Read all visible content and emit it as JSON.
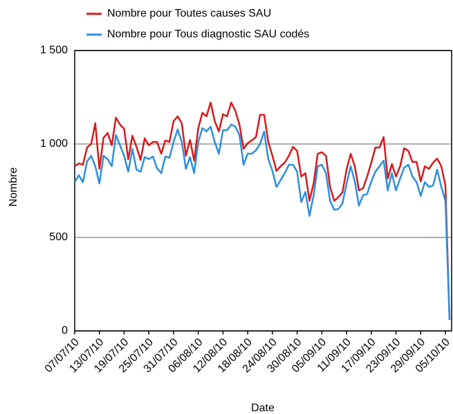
{
  "chart_data": {
    "type": "line",
    "xlabel": "Date",
    "ylabel": "Nombre",
    "categories": [
      "07/07/10",
      null,
      null,
      null,
      null,
      null,
      "13/07/10",
      null,
      null,
      null,
      null,
      null,
      "19/07/10",
      null,
      null,
      null,
      null,
      null,
      "25/07/10",
      null,
      null,
      null,
      null,
      null,
      "31/07/10",
      null,
      null,
      null,
      null,
      null,
      "06/08/10",
      null,
      null,
      null,
      null,
      null,
      "12/08/10",
      null,
      null,
      null,
      null,
      null,
      "18/08/10",
      null,
      null,
      null,
      null,
      null,
      "24/08/10",
      null,
      null,
      null,
      null,
      null,
      "30/08/10",
      null,
      null,
      null,
      null,
      null,
      "05/09/10",
      null,
      null,
      null,
      null,
      null,
      "11/09/10",
      null,
      null,
      null,
      null,
      null,
      "17/09/10",
      null,
      null,
      null,
      null,
      null,
      "23/09/10",
      null,
      null,
      null,
      null,
      null,
      "29/09/10",
      null,
      null,
      null,
      null,
      null,
      "05/10/10",
      null
    ],
    "series": [
      {
        "name": "Nombre pour Toutes causes SAU",
        "color": "#d7191c",
        "values": [
          881,
          896,
          889,
          981,
          1000,
          1111,
          867,
          1033,
          1059,
          993,
          1141,
          1104,
          1081,
          919,
          1044,
          985,
          915,
          1030,
          993,
          1011,
          1011,
          948,
          1019,
          1011,
          1122,
          1148,
          1111,
          937,
          1022,
          911,
          1085,
          1167,
          1148,
          1222,
          1122,
          1067,
          1159,
          1148,
          1222,
          1178,
          1104,
          974,
          1004,
          1019,
          1037,
          1156,
          1156,
          1011,
          937,
          856,
          881,
          900,
          937,
          985,
          963,
          826,
          844,
          696,
          789,
          948,
          956,
          937,
          770,
          696,
          715,
          741,
          863,
          948,
          881,
          752,
          763,
          826,
          900,
          981,
          981,
          1037,
          815,
          893,
          826,
          881,
          978,
          963,
          904,
          904,
          800,
          881,
          867,
          900,
          922,
          881,
          778,
          59
        ]
      },
      {
        "name": "Nombre pour Tous diagnostic SAU codés",
        "color": "#2b8fde",
        "values": [
          796,
          833,
          796,
          907,
          937,
          881,
          789,
          937,
          919,
          881,
          1048,
          993,
          937,
          852,
          974,
          863,
          852,
          930,
          919,
          933,
          870,
          844,
          933,
          926,
          1011,
          1078,
          1011,
          867,
          930,
          844,
          1011,
          1085,
          1067,
          1093,
          1011,
          948,
          1074,
          1074,
          1104,
          1093,
          1048,
          889,
          948,
          948,
          967,
          1000,
          1067,
          919,
          856,
          770,
          807,
          844,
          889,
          889,
          852,
          689,
          744,
          615,
          726,
          881,
          889,
          844,
          696,
          648,
          652,
          681,
          789,
          881,
          800,
          670,
          726,
          733,
          800,
          852,
          881,
          911,
          752,
          844,
          752,
          815,
          874,
          889,
          826,
          796,
          722,
          796,
          770,
          778,
          863,
          770,
          696,
          59
        ]
      }
    ],
    "ylim": [
      0,
      1500
    ],
    "yticks": [
      0,
      500,
      {
        "value": 1000,
        "label": "1 000"
      },
      {
        "value": 1500,
        "label": "1 500"
      }
    ],
    "grid": true
  }
}
